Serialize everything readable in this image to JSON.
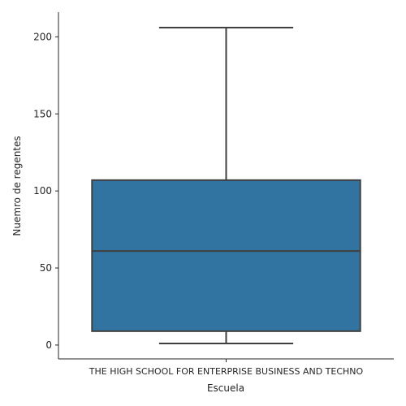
{
  "chart_data": {
    "type": "box",
    "title": "",
    "xlabel": "Escuela",
    "ylabel": "Nuemro de regentes",
    "categories": [
      "THE HIGH SCHOOL FOR ENTERPRISE BUSINESS AND TECHNO"
    ],
    "boxes": [
      {
        "category": "THE HIGH SCHOOL FOR ENTERPRISE BUSINESS AND TECHNO",
        "whisker_low": 1,
        "q1": 9,
        "median": 61,
        "q3": 107,
        "whisker_high": 206
      }
    ],
    "ylim": [
      -9,
      216
    ],
    "yticks": [
      0,
      50,
      100,
      150,
      200
    ],
    "colors": {
      "box": "#3274a1",
      "lines": "#3f3f3f",
      "axis": "#262626"
    }
  }
}
